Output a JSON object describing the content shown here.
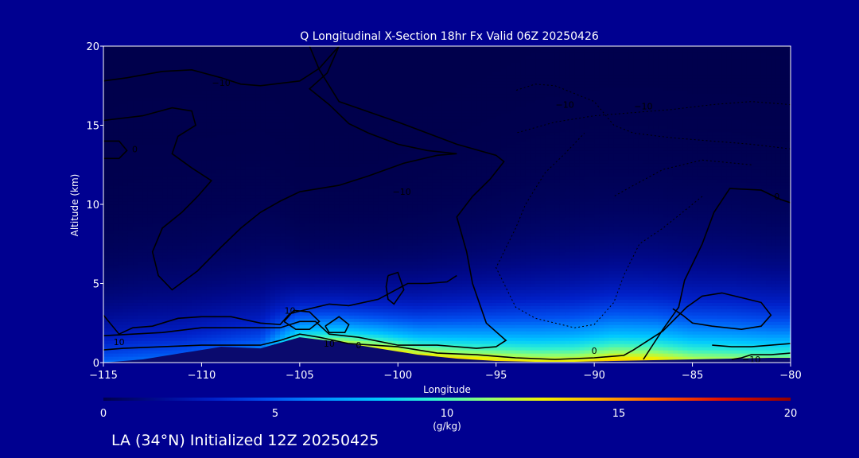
{
  "chart_data": {
    "type": "heatmap",
    "title": "Q Longitudinal X-Section 18hr  Fx Valid 06Z 20250426",
    "xlabel": "Longitude",
    "ylabel": "Altitude (km)",
    "xlim": [
      -115,
      -80
    ],
    "ylim": [
      0,
      20
    ],
    "x_ticks": [
      -115,
      -110,
      -105,
      -100,
      -95,
      -90,
      -85,
      -80
    ],
    "x_tick_labels": [
      "−115",
      "−110",
      "−105",
      "−100",
      "−95",
      "−90",
      "−85",
      "−80"
    ],
    "y_ticks": [
      0,
      5,
      10,
      15,
      20
    ],
    "y_tick_labels": [
      "0",
      "5",
      "10",
      "15",
      "20"
    ],
    "grid": false,
    "colorbar": {
      "min": 0,
      "max": 20,
      "ticks": [
        0,
        5,
        10,
        15,
        20
      ],
      "tick_labels": [
        "0",
        "5",
        "10",
        "15",
        "20"
      ],
      "label": "(g/kg)"
    },
    "humidity_profiles": [
      {
        "lon": -115,
        "surface_km": 0.0,
        "q_surface": 5.5,
        "scale_km": 2.6
      },
      {
        "lon": -113,
        "surface_km": 0.2,
        "q_surface": 5.5,
        "scale_km": 2.7
      },
      {
        "lon": -111,
        "surface_km": 0.6,
        "q_surface": 5.0,
        "scale_km": 2.7
      },
      {
        "lon": -109,
        "surface_km": 1.0,
        "q_surface": 5.0,
        "scale_km": 2.7
      },
      {
        "lon": -107,
        "surface_km": 0.9,
        "q_surface": 6.0,
        "scale_km": 2.7
      },
      {
        "lon": -105,
        "surface_km": 1.6,
        "q_surface": 10.0,
        "scale_km": 1.9
      },
      {
        "lon": -103,
        "surface_km": 1.3,
        "q_surface": 12.0,
        "scale_km": 1.9
      },
      {
        "lon": -101,
        "surface_km": 0.9,
        "q_surface": 13.0,
        "scale_km": 2.0
      },
      {
        "lon": -99,
        "surface_km": 0.5,
        "q_surface": 13.0,
        "scale_km": 2.2
      },
      {
        "lon": -97,
        "surface_km": 0.25,
        "q_surface": 13.5,
        "scale_km": 2.4
      },
      {
        "lon": -95,
        "surface_km": 0.1,
        "q_surface": 13.5,
        "scale_km": 2.6
      },
      {
        "lon": -93,
        "surface_km": 0.05,
        "q_surface": 13.0,
        "scale_km": 2.8
      },
      {
        "lon": -91,
        "surface_km": 0.05,
        "q_surface": 13.0,
        "scale_km": 2.9
      },
      {
        "lon": -89,
        "surface_km": 0.1,
        "q_surface": 14.0,
        "scale_km": 2.9
      },
      {
        "lon": -87,
        "surface_km": 0.15,
        "q_surface": 13.5,
        "scale_km": 2.9
      },
      {
        "lon": -85,
        "surface_km": 0.2,
        "q_surface": 12.0,
        "scale_km": 2.9
      },
      {
        "lon": -83,
        "surface_km": 0.25,
        "q_surface": 11.5,
        "scale_km": 2.9
      },
      {
        "lon": -81,
        "surface_km": 0.3,
        "q_surface": 11.0,
        "scale_km": 2.8
      },
      {
        "lon": -80,
        "surface_km": 0.3,
        "q_surface": 11.0,
        "scale_km": 2.8
      }
    ],
    "contours": [
      {
        "style": "solid",
        "points": [
          [
            -115,
            17.8
          ],
          [
            -113.8,
            18.0
          ],
          [
            -112,
            18.4
          ],
          [
            -110.5,
            18.5
          ],
          [
            -109,
            18.0
          ],
          [
            -108,
            17.6
          ],
          [
            -107,
            17.5
          ],
          [
            -105,
            17.8
          ],
          [
            -104,
            18.6
          ],
          [
            -103,
            20
          ]
        ]
      },
      {
        "style": "solid",
        "points": [
          [
            -115,
            15.3
          ],
          [
            -113,
            15.6
          ],
          [
            -111.5,
            16.1
          ],
          [
            -110.5,
            15.9
          ],
          [
            -110.3,
            15.0
          ],
          [
            -111.2,
            14.3
          ],
          [
            -111.5,
            13.2
          ],
          [
            -110.5,
            12.3
          ],
          [
            -109.5,
            11.5
          ],
          [
            -110.2,
            10.5
          ],
          [
            -111,
            9.5
          ],
          [
            -112,
            8.5
          ],
          [
            -112.5,
            7.0
          ],
          [
            -112.2,
            5.5
          ],
          [
            -111.5,
            4.6
          ],
          [
            -110.2,
            5.8
          ],
          [
            -109,
            7.3
          ],
          [
            -108,
            8.5
          ],
          [
            -107,
            9.5
          ],
          [
            -106,
            10.2
          ],
          [
            -105,
            10.8
          ],
          [
            -103,
            11.2
          ],
          [
            -101.5,
            11.8
          ],
          [
            -99.7,
            12.6
          ],
          [
            -98,
            13.1
          ],
          [
            -97,
            13.2
          ],
          [
            -98.5,
            13.4
          ],
          [
            -100,
            13.8
          ],
          [
            -101.5,
            14.5
          ],
          [
            -102.5,
            15.1
          ],
          [
            -103.5,
            16.3
          ],
          [
            -104.5,
            17.3
          ],
          [
            -103.6,
            18.3
          ],
          [
            -103,
            20
          ]
        ]
      },
      {
        "style": "solid",
        "points": [
          [
            -115,
            14.0
          ],
          [
            -114.2,
            14.0
          ],
          [
            -113.8,
            13.4
          ],
          [
            -114.2,
            12.9
          ],
          [
            -115,
            12.9
          ]
        ]
      },
      {
        "style": "solid",
        "points": [
          [
            -115,
            3.0
          ],
          [
            -114.2,
            1.8
          ],
          [
            -113.5,
            2.2
          ],
          [
            -112.5,
            2.3
          ],
          [
            -111.2,
            2.8
          ],
          [
            -110,
            2.9
          ],
          [
            -108.5,
            2.9
          ],
          [
            -107,
            2.5
          ],
          [
            -106,
            2.4
          ],
          [
            -105.5,
            3.1
          ],
          [
            -104.5,
            3.4
          ],
          [
            -103.5,
            3.7
          ],
          [
            -102.5,
            3.6
          ],
          [
            -101,
            4.0
          ],
          [
            -99.5,
            5.0
          ],
          [
            -98.5,
            5.0
          ],
          [
            -97.5,
            5.1
          ],
          [
            -97,
            5.5
          ]
        ]
      },
      {
        "style": "solid",
        "points": [
          [
            -115,
            1.7
          ],
          [
            -113.5,
            1.8
          ],
          [
            -112,
            1.9
          ],
          [
            -110,
            2.2
          ],
          [
            -108,
            2.2
          ],
          [
            -106,
            2.2
          ],
          [
            -105.5,
            2.4
          ],
          [
            -105,
            2.6
          ],
          [
            -104.2,
            2.6
          ],
          [
            -103.5,
            1.8
          ],
          [
            -102,
            1.6
          ],
          [
            -100,
            1.1
          ],
          [
            -98,
            1.1
          ],
          [
            -96,
            0.9
          ],
          [
            -95,
            1.0
          ],
          [
            -94.5,
            1.4
          ],
          [
            -95.5,
            2.5
          ],
          [
            -96.2,
            5
          ],
          [
            -96.5,
            7
          ],
          [
            -97,
            9.2
          ],
          [
            -96.2,
            10.5
          ],
          [
            -95.3,
            11.6
          ],
          [
            -94.6,
            12.7
          ],
          [
            -95,
            13.1
          ],
          [
            -97,
            13.8
          ],
          [
            -100,
            15.2
          ],
          [
            -103,
            16.5
          ],
          [
            -104,
            18.5
          ],
          [
            -104.5,
            20
          ]
        ]
      },
      {
        "style": "solid",
        "points": [
          [
            -105.8,
            2.6
          ],
          [
            -105.3,
            3.3
          ],
          [
            -104.5,
            3.2
          ],
          [
            -104,
            2.6
          ],
          [
            -104.5,
            2.1
          ],
          [
            -105.2,
            2.1
          ],
          [
            -105.8,
            2.6
          ]
        ]
      },
      {
        "style": "solid",
        "points": [
          [
            -103.7,
            2.3
          ],
          [
            -103,
            2.9
          ],
          [
            -102.5,
            2.4
          ],
          [
            -102.7,
            1.9
          ],
          [
            -103.5,
            1.9
          ],
          [
            -103.7,
            2.3
          ]
        ]
      },
      {
        "style": "solid",
        "points": [
          [
            -100.5,
            5.5
          ],
          [
            -100,
            5.7
          ],
          [
            -99.7,
            4.6
          ],
          [
            -100.2,
            3.7
          ],
          [
            -100.5,
            4.0
          ],
          [
            -100.6,
            4.8
          ],
          [
            -100.5,
            5.5
          ]
        ]
      },
      {
        "style": "solid",
        "points": [
          [
            -115,
            0.8
          ],
          [
            -114,
            0.9
          ],
          [
            -112,
            1.0
          ],
          [
            -110,
            1.1
          ],
          [
            -108.5,
            1.1
          ],
          [
            -107,
            1.1
          ],
          [
            -106,
            1.4
          ],
          [
            -105,
            1.8
          ],
          [
            -104,
            1.6
          ],
          [
            -102.5,
            1.2
          ],
          [
            -100,
            1.0
          ],
          [
            -98,
            0.6
          ],
          [
            -96,
            0.5
          ],
          [
            -94,
            0.3
          ],
          [
            -92,
            0.2
          ],
          [
            -90,
            0.3
          ],
          [
            -88.5,
            0.45
          ],
          [
            -88,
            0.8
          ],
          [
            -86.5,
            2.0
          ],
          [
            -85.3,
            3.5
          ],
          [
            -84.5,
            4.2
          ],
          [
            -83.5,
            4.4
          ],
          [
            -82.5,
            4.1
          ],
          [
            -81.5,
            3.8
          ],
          [
            -81,
            3.0
          ],
          [
            -81.5,
            2.3
          ],
          [
            -82.5,
            2.1
          ],
          [
            -84,
            2.3
          ],
          [
            -85,
            2.5
          ],
          [
            -85.5,
            3.0
          ],
          [
            -86,
            3.4
          ]
        ]
      },
      {
        "style": "solid",
        "points": [
          [
            -80,
            1.2
          ],
          [
            -81,
            1.1
          ],
          [
            -82,
            1.0
          ],
          [
            -83,
            1.0
          ],
          [
            -84,
            1.1
          ]
        ]
      },
      {
        "style": "solid",
        "points": [
          [
            -80,
            0.6
          ],
          [
            -81,
            0.5
          ],
          [
            -82,
            0.5
          ],
          [
            -82.5,
            0.3
          ],
          [
            -83,
            0.2
          ]
        ]
      },
      {
        "style": "solid",
        "points": [
          [
            -87.5,
            0.2
          ],
          [
            -86.5,
            2.1
          ],
          [
            -85.7,
            3.5
          ],
          [
            -85.4,
            5.2
          ],
          [
            -84.5,
            7.5
          ],
          [
            -83.9,
            9.5
          ],
          [
            -83.1,
            11.0
          ],
          [
            -81.5,
            10.9
          ],
          [
            -80.5,
            10.3
          ],
          [
            -80,
            10.1
          ]
        ]
      },
      {
        "style": "dashed",
        "points": [
          [
            -80,
            16.3
          ],
          [
            -82,
            16.5
          ],
          [
            -84,
            16.3
          ],
          [
            -86,
            16.0
          ],
          [
            -88,
            15.8
          ],
          [
            -90,
            15.6
          ],
          [
            -92,
            15.2
          ],
          [
            -94,
            14.5
          ]
        ]
      },
      {
        "style": "dashed",
        "points": [
          [
            -80,
            13.5
          ],
          [
            -82,
            13.8
          ],
          [
            -84,
            14.0
          ],
          [
            -86,
            14.2
          ],
          [
            -88,
            14.5
          ],
          [
            -89,
            15.0
          ],
          [
            -90,
            16.5
          ],
          [
            -91,
            17.0
          ],
          [
            -92,
            17.5
          ],
          [
            -93,
            17.6
          ],
          [
            -94,
            17.2
          ]
        ]
      },
      {
        "style": "dashed",
        "points": [
          [
            -84.5,
            10.5
          ],
          [
            -86.5,
            8.5
          ],
          [
            -87.7,
            7.5
          ],
          [
            -88.5,
            5.5
          ],
          [
            -89,
            3.8
          ],
          [
            -90,
            2.4
          ],
          [
            -91,
            2.2
          ],
          [
            -93,
            2.8
          ],
          [
            -94,
            3.5
          ],
          [
            -95,
            6
          ],
          [
            -94,
            8.5
          ],
          [
            -93.5,
            10
          ],
          [
            -92.5,
            12
          ],
          [
            -91.5,
            13.2
          ],
          [
            -90.5,
            14.5
          ]
        ]
      },
      {
        "style": "dashed",
        "points": [
          [
            -82,
            12.5
          ],
          [
            -84.5,
            12.8
          ],
          [
            -86.5,
            12.2
          ],
          [
            -88,
            11.2
          ],
          [
            -89,
            10.5
          ]
        ]
      }
    ],
    "contour_labels": [
      {
        "lon": -109,
        "alt": 17.7,
        "text": "−10"
      },
      {
        "lon": -113.4,
        "alt": 13.5,
        "text": "0"
      },
      {
        "lon": -99.8,
        "alt": 10.8,
        "text": "−10"
      },
      {
        "lon": -105.5,
        "alt": 3.3,
        "text": "10"
      },
      {
        "lon": -114.2,
        "alt": 1.3,
        "text": "10"
      },
      {
        "lon": -103.5,
        "alt": 1.2,
        "text": "10"
      },
      {
        "lon": -102,
        "alt": 1.1,
        "text": "0"
      },
      {
        "lon": -90,
        "alt": 0.75,
        "text": "0"
      },
      {
        "lon": -82,
        "alt": 0.2,
        "text": "−10"
      },
      {
        "lon": -91.5,
        "alt": 16.3,
        "text": "−10"
      },
      {
        "lon": -87.5,
        "alt": 16.2,
        "text": "−10"
      },
      {
        "lon": -80.7,
        "alt": 10.5,
        "text": "0"
      }
    ]
  },
  "footer": {
    "text": "LA (34°N) Initialized 12Z 20250425"
  },
  "colors": {
    "background": "#000090",
    "plot_background": "#00004c",
    "terrain": "#0a0a6e",
    "contour": "#000000",
    "text": "#ffffff"
  }
}
